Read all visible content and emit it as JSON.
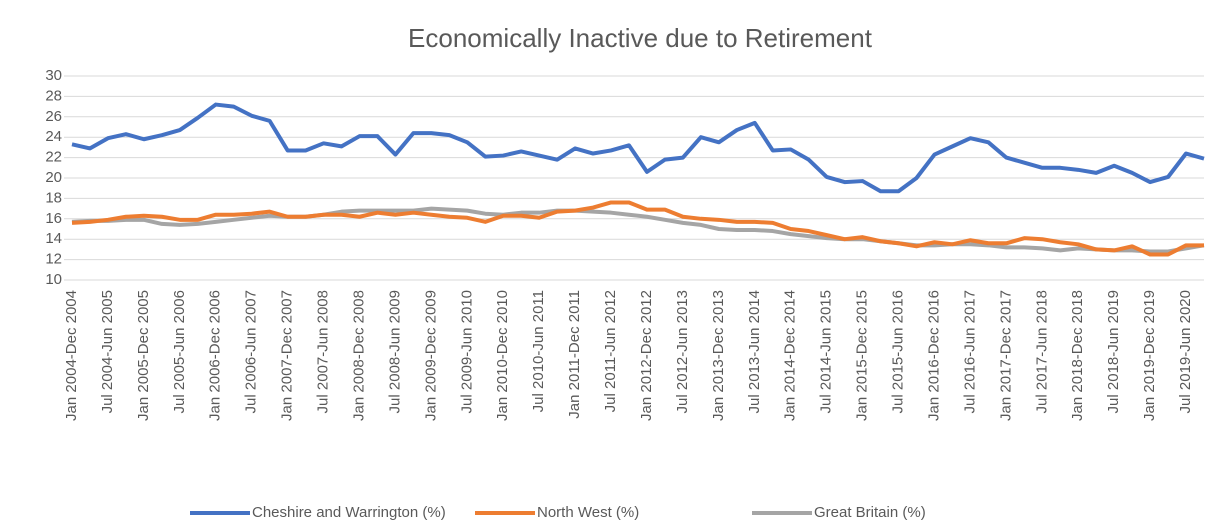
{
  "chart_data": {
    "type": "line",
    "title": "Economically Inactive due to Retirement",
    "categories": [
      "Jan 2004-Dec 2004",
      null,
      "Jul 2004-Jun 2005",
      null,
      "Jan 2005-Dec 2005",
      null,
      "Jul 2005-Jun 2006",
      null,
      "Jan 2006-Dec 2006",
      null,
      "Jul 2006-Jun 2007",
      null,
      "Jan 2007-Dec 2007",
      null,
      "Jul 2007-Jun 2008",
      null,
      "Jan 2008-Dec 2008",
      null,
      "Jul 2008-Jun 2009",
      null,
      "Jan 2009-Dec 2009",
      null,
      "Jul 2009-Jun 2010",
      null,
      "Jan 2010-Dec 2010",
      null,
      "Jul 2010-Jun 2011",
      null,
      "Jan 2011-Dec 2011",
      null,
      "Jul 2011-Jun 2012",
      null,
      "Jan 2012-Dec 2012",
      null,
      "Jul 2012-Jun 2013",
      null,
      "Jan 2013-Dec 2013",
      null,
      "Jul 2013-Jun 2014",
      null,
      "Jan 2014-Dec 2014",
      null,
      "Jul 2014-Jun 2015",
      null,
      "Jan 2015-Dec 2015",
      null,
      "Jul 2015-Jun 2016",
      null,
      "Jan 2016-Dec 2016",
      null,
      "Jul 2016-Jun 2017",
      null,
      "Jan 2017-Dec 2017",
      null,
      "Jul 2017-Jun 2018",
      null,
      "Jan 2018-Dec 2018",
      null,
      "Jul 2018-Jun 2019",
      null,
      "Jan 2019-Dec 2019",
      null,
      "Jul 2019-Jun 2020",
      null
    ],
    "series": [
      {
        "name": "Cheshire and Warrington (%)",
        "color": "#4472c4",
        "values": [
          23.3,
          22.9,
          23.9,
          24.3,
          23.8,
          24.2,
          24.7,
          25.9,
          27.2,
          27.0,
          26.1,
          25.6,
          22.7,
          22.7,
          23.4,
          23.1,
          24.1,
          24.1,
          22.3,
          24.4,
          24.4,
          24.2,
          23.5,
          22.1,
          22.2,
          22.6,
          22.2,
          21.8,
          22.9,
          22.4,
          22.7,
          23.2,
          20.6,
          21.8,
          22.0,
          24.0,
          23.5,
          24.7,
          25.4,
          22.7,
          22.8,
          21.8,
          20.1,
          19.6,
          19.7,
          18.7,
          18.7,
          20.0,
          22.3,
          23.1,
          23.9,
          23.5,
          22.0,
          21.5,
          21.0,
          21.0,
          20.8,
          20.5,
          21.2,
          20.5,
          19.6,
          20.1,
          22.4,
          21.9
        ]
      },
      {
        "name": "North West (%)",
        "color": "#ed7d31",
        "values": [
          15.6,
          15.7,
          15.9,
          16.2,
          16.3,
          16.2,
          15.9,
          15.9,
          16.4,
          16.4,
          16.5,
          16.7,
          16.2,
          16.2,
          16.4,
          16.4,
          16.2,
          16.6,
          16.4,
          16.6,
          16.4,
          16.2,
          16.1,
          15.7,
          16.3,
          16.3,
          16.1,
          16.7,
          16.8,
          17.1,
          17.6,
          17.6,
          16.9,
          16.9,
          16.2,
          16.0,
          15.9,
          15.7,
          15.7,
          15.6,
          15.0,
          14.8,
          14.4,
          14.0,
          14.2,
          13.8,
          13.6,
          13.3,
          13.7,
          13.5,
          13.9,
          13.6,
          13.6,
          14.1,
          14.0,
          13.7,
          13.5,
          13.0,
          12.9,
          13.3,
          12.5,
          12.5,
          13.4,
          13.4
        ]
      },
      {
        "name": "Great Britain (%)",
        "color": "#a5a5a5",
        "values": [
          15.7,
          15.8,
          15.8,
          15.9,
          15.9,
          15.5,
          15.4,
          15.5,
          15.7,
          15.9,
          16.1,
          16.3,
          16.2,
          16.2,
          16.4,
          16.7,
          16.8,
          16.8,
          16.8,
          16.8,
          17.0,
          16.9,
          16.8,
          16.5,
          16.4,
          16.6,
          16.6,
          16.8,
          16.8,
          16.7,
          16.6,
          16.4,
          16.2,
          15.9,
          15.6,
          15.4,
          15.0,
          14.9,
          14.9,
          14.8,
          14.5,
          14.3,
          14.1,
          14.0,
          14.0,
          13.8,
          13.6,
          13.4,
          13.4,
          13.5,
          13.5,
          13.4,
          13.2,
          13.2,
          13.1,
          12.9,
          13.1,
          13.0,
          12.9,
          12.9,
          12.8,
          12.8,
          13.1,
          13.4
        ]
      }
    ],
    "ylim": [
      10,
      30
    ],
    "yticks": [
      10,
      12,
      14,
      16,
      18,
      20,
      22,
      24,
      26,
      28,
      30
    ],
    "grid": true,
    "legend": "bottom"
  }
}
